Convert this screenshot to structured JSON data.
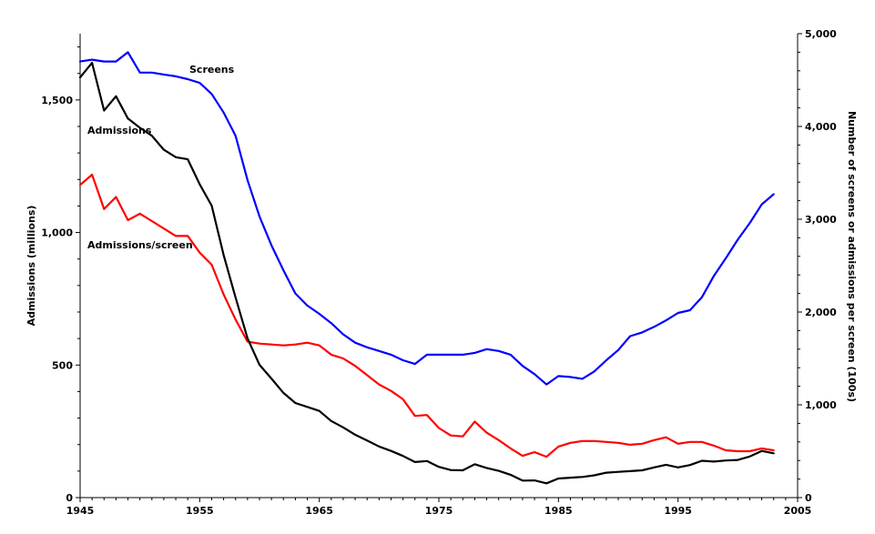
{
  "chart_data": {
    "type": "line",
    "title": "",
    "xlabel": "",
    "ylabel": "Admissions (millions)",
    "y2label": "Number of screens or admissions per screen (100s)",
    "xlim": [
      1945,
      2005
    ],
    "ylim": [
      0,
      1750
    ],
    "y2lim": [
      0,
      5000
    ],
    "x_ticks": [
      1945,
      1955,
      1965,
      1975,
      1985,
      1995,
      2005
    ],
    "y_ticks": [
      0,
      500,
      1000,
      1500
    ],
    "y_tick_labels": [
      "0",
      "500",
      "1,000",
      "1,500"
    ],
    "y2_ticks": [
      0,
      1000,
      2000,
      3000,
      4000,
      5000
    ],
    "y2_tick_labels": [
      "0",
      "1,000",
      "2,000",
      "3,000",
      "4,000",
      "5,000"
    ],
    "grid": false,
    "legend": "inline labels",
    "series": [
      {
        "name": "Screens",
        "axis": "right",
        "color": "#0000ff",
        "x": [
          1945,
          1946,
          1947,
          1948,
          1949,
          1950,
          1951,
          1952,
          1953,
          1954,
          1955,
          1956,
          1957,
          1958,
          1959,
          1960,
          1961,
          1962,
          1963,
          1964,
          1965,
          1966,
          1967,
          1968,
          1969,
          1970,
          1971,
          1972,
          1973,
          1974,
          1975,
          1976,
          1977,
          1978,
          1979,
          1980,
          1981,
          1982,
          1983,
          1984,
          1985,
          1986,
          1987,
          1988,
          1989,
          1990,
          1991,
          1992,
          1993,
          1994,
          1995,
          1996,
          1997,
          1998,
          1999,
          2000,
          2001,
          2002,
          2003
        ],
        "y": [
          4700,
          4720,
          4700,
          4700,
          4800,
          4580,
          4580,
          4560,
          4540,
          4510,
          4470,
          4350,
          4150,
          3900,
          3420,
          3030,
          2720,
          2450,
          2200,
          2070,
          1980,
          1880,
          1760,
          1670,
          1620,
          1580,
          1540,
          1480,
          1440,
          1540,
          1540,
          1540,
          1540,
          1560,
          1600,
          1580,
          1540,
          1420,
          1330,
          1220,
          1310,
          1300,
          1280,
          1360,
          1480,
          1590,
          1740,
          1780,
          1840,
          1910,
          1990,
          2020,
          2160,
          2390,
          2580,
          2780,
          2960,
          3160,
          3270
        ]
      },
      {
        "name": "Admissions",
        "axis": "left",
        "color": "#000000",
        "x": [
          1945,
          1946,
          1947,
          1948,
          1949,
          1950,
          1951,
          1952,
          1953,
          1954,
          1955,
          1956,
          1957,
          1958,
          1959,
          1960,
          1961,
          1962,
          1963,
          1964,
          1965,
          1966,
          1967,
          1968,
          1969,
          1970,
          1971,
          1972,
          1973,
          1974,
          1975,
          1976,
          1977,
          1978,
          1979,
          1980,
          1981,
          1982,
          1983,
          1984,
          1985,
          1986,
          1987,
          1988,
          1989,
          1990,
          1991,
          1992,
          1993,
          1994,
          1995,
          1996,
          1997,
          1998,
          1999,
          2000,
          2001,
          2002,
          2003
        ],
        "y": [
          1585,
          1640,
          1460,
          1514,
          1430,
          1395,
          1365,
          1312,
          1284,
          1276,
          1182,
          1101,
          915,
          755,
          600,
          501,
          449,
          395,
          357,
          342,
          327,
          289,
          265,
          237,
          215,
          193,
          176,
          157,
          134,
          138,
          116,
          104,
          103,
          126,
          112,
          101,
          86,
          64,
          65,
          54,
          72,
          75,
          78,
          84,
          94,
          97,
          100,
          103,
          114,
          124,
          114,
          123,
          139,
          136,
          140,
          142,
          155,
          176,
          167
        ]
      },
      {
        "name": "Admissions/screen",
        "axis": "right",
        "color": "#ff0000",
        "x": [
          1945,
          1946,
          1947,
          1948,
          1949,
          1950,
          1951,
          1952,
          1953,
          1954,
          1955,
          1956,
          1957,
          1958,
          1959,
          1960,
          1961,
          1962,
          1963,
          1964,
          1965,
          1966,
          1967,
          1968,
          1969,
          1970,
          1971,
          1972,
          1973,
          1974,
          1975,
          1976,
          1977,
          1978,
          1979,
          1980,
          1981,
          1982,
          1983,
          1984,
          1985,
          1986,
          1987,
          1988,
          1989,
          1990,
          1991,
          1992,
          1993,
          1994,
          1995,
          1996,
          1997,
          1998,
          1999,
          2000,
          2001,
          2002,
          2003
        ],
        "y": [
          3370,
          3480,
          3110,
          3240,
          2990,
          3060,
          2980,
          2900,
          2820,
          2820,
          2640,
          2510,
          2190,
          1920,
          1680,
          1660,
          1650,
          1640,
          1650,
          1670,
          1640,
          1540,
          1500,
          1420,
          1320,
          1220,
          1150,
          1060,
          880,
          890,
          750,
          670,
          660,
          820,
          700,
          620,
          530,
          450,
          490,
          440,
          550,
          590,
          610,
          610,
          600,
          590,
          570,
          580,
          620,
          650,
          580,
          600,
          600,
          560,
          510,
          500,
          500,
          530,
          510
        ]
      }
    ],
    "annotations": [
      {
        "text": "Screens",
        "series": "Screens"
      },
      {
        "text": "Admissions",
        "series": "Admissions"
      },
      {
        "text": "Admissions/screen",
        "series": "Admissions/screen"
      }
    ]
  }
}
